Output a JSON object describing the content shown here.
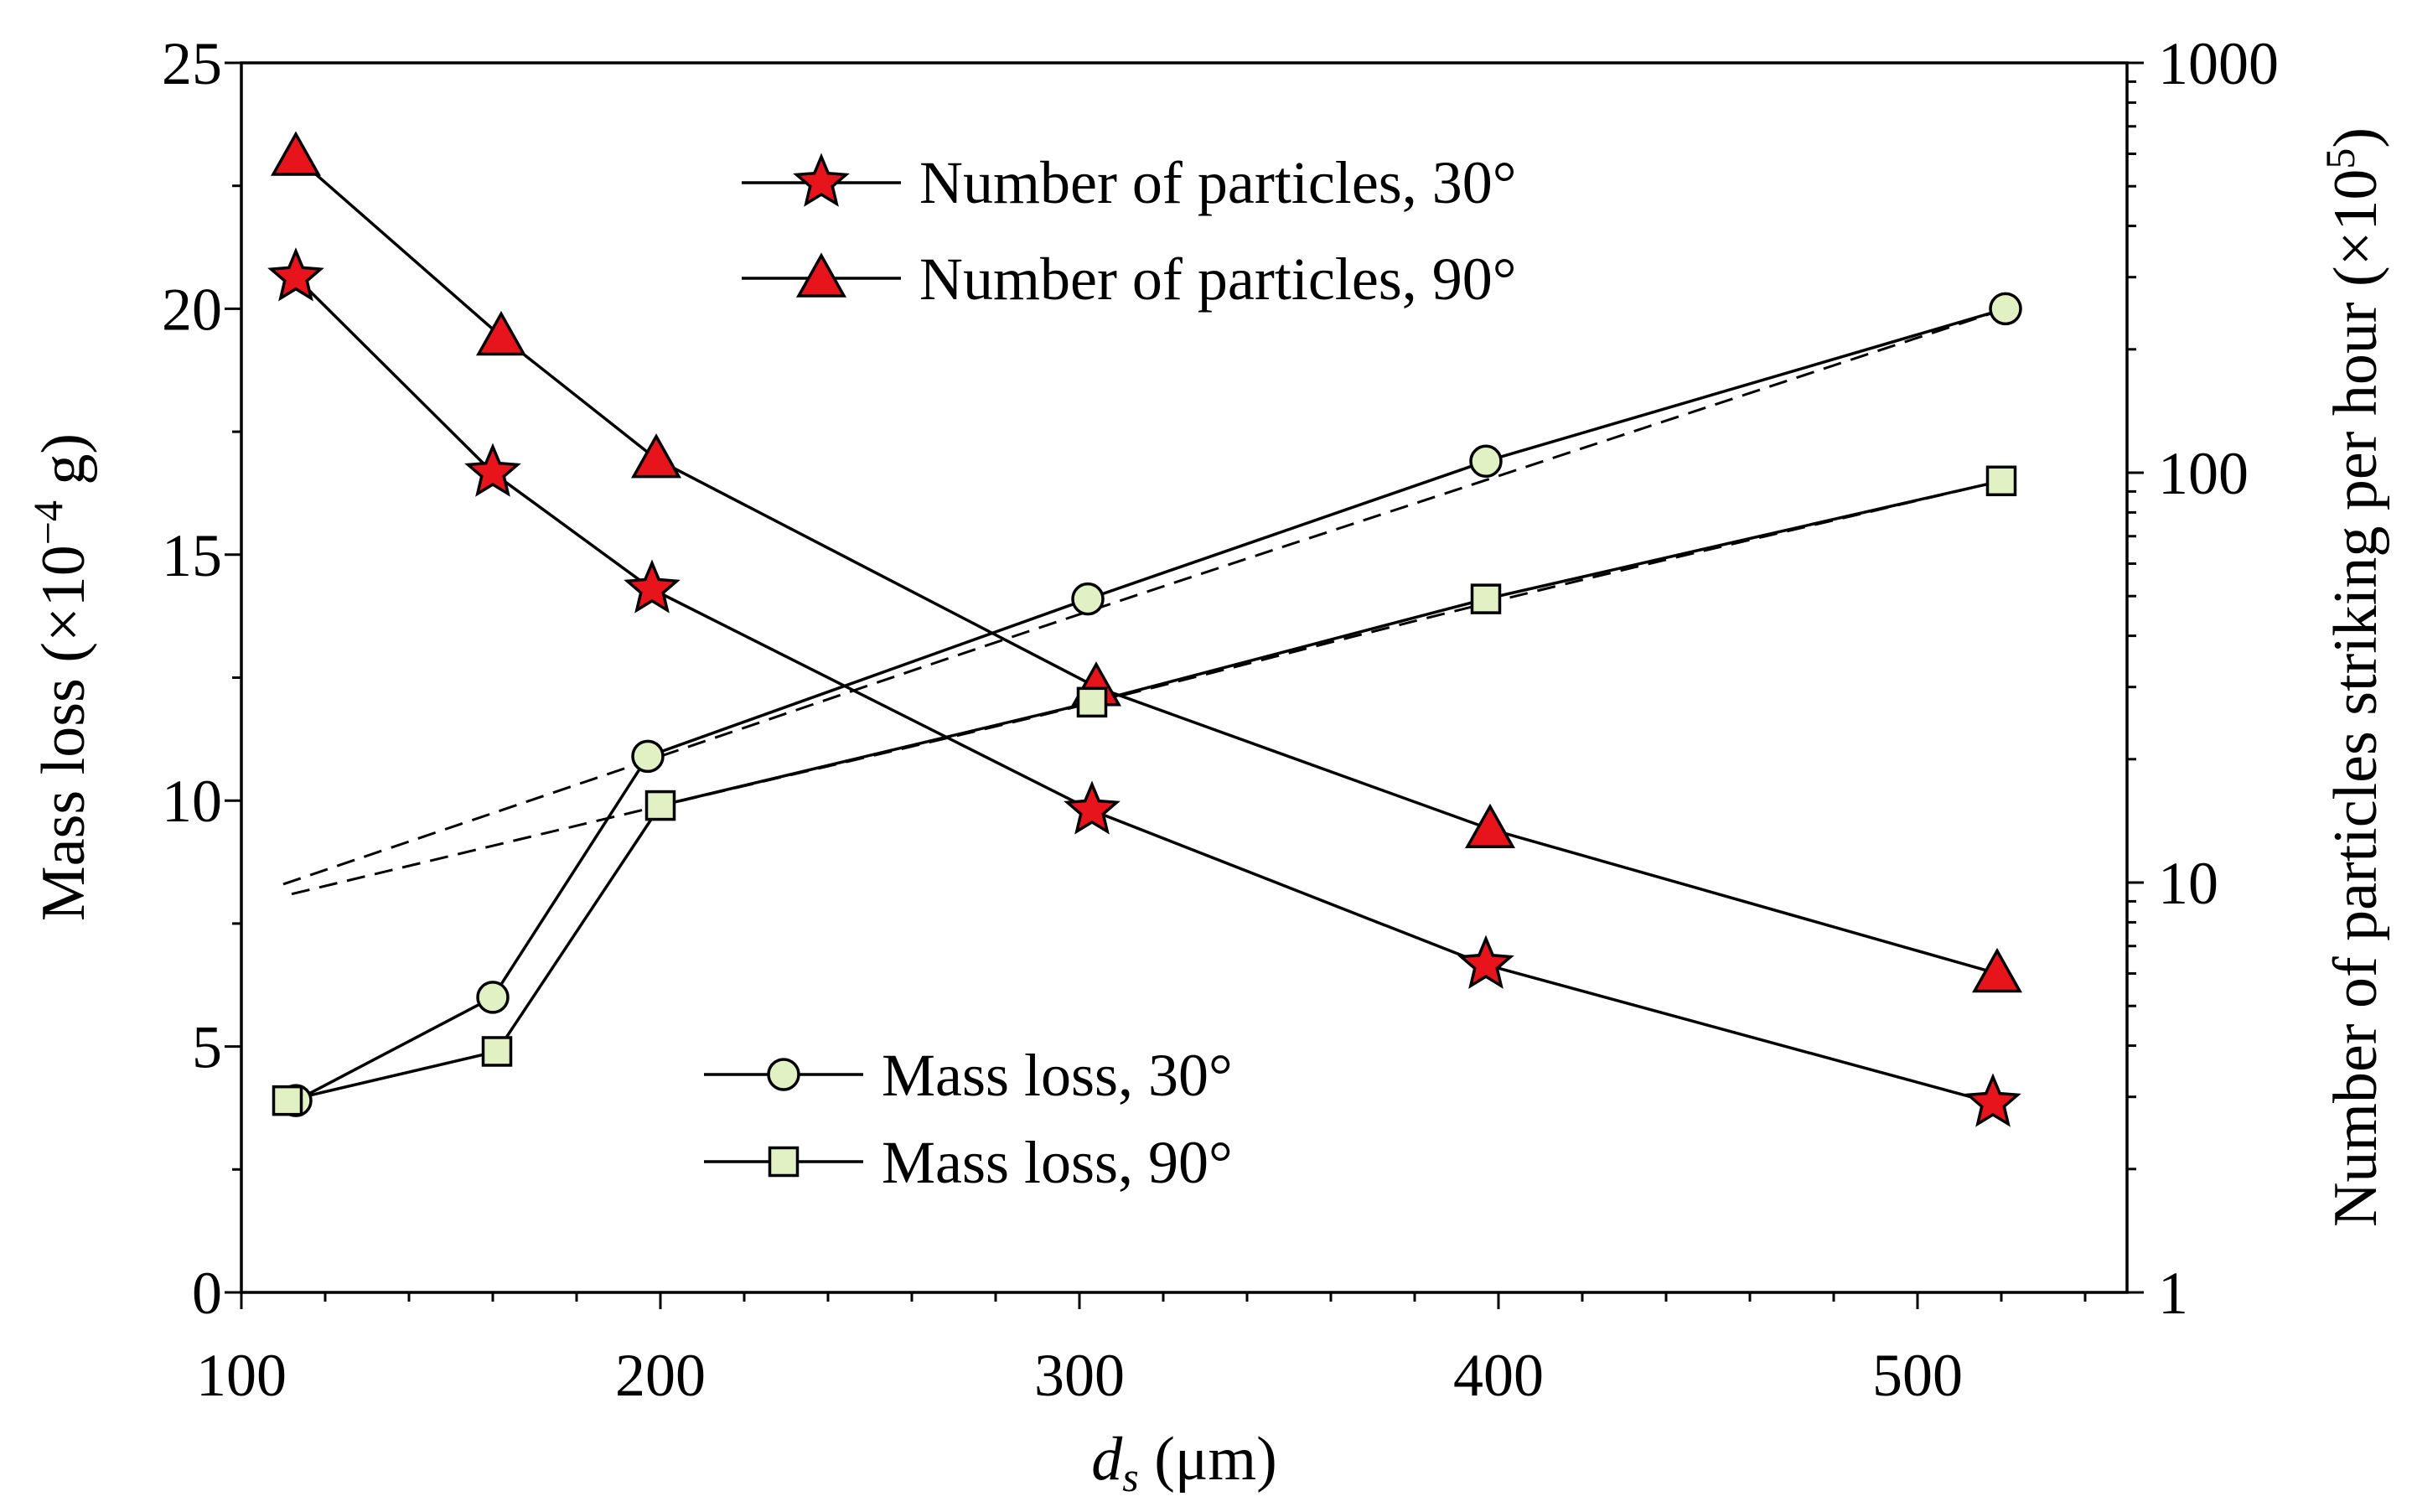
{
  "chart_data": {
    "type": "line",
    "x_axis": {
      "label_var": "d",
      "label_sub": "s",
      "label_unit": " (μm)",
      "range": [
        100,
        550
      ],
      "major_ticks": [
        100,
        200,
        300,
        400,
        500
      ],
      "tick_labels": [
        "100",
        "200",
        "300",
        "400",
        "500"
      ]
    },
    "y_left": {
      "label_main": "Mass loss (×10",
      "label_exp": "−4",
      "label_tail": " g)",
      "range": [
        0,
        25
      ],
      "major_ticks": [
        0,
        5,
        10,
        15,
        20,
        25
      ],
      "tick_labels": [
        "0",
        "5",
        "10",
        "15",
        "20",
        "25"
      ]
    },
    "y_right": {
      "label_main": "Number of particles striking per hour (×10",
      "label_exp": "5",
      "label_tail": ")",
      "scale": "log",
      "range": [
        1,
        1000
      ],
      "major_ticks": [
        1,
        10,
        100,
        1000
      ],
      "tick_labels": [
        "1",
        "10",
        "100",
        "1000"
      ]
    },
    "series": [
      {
        "name": "Number of particles, 30°",
        "axis": "right",
        "marker": "star",
        "color": "#e8141c",
        "x": [
          113,
          160,
          198,
          303,
          397,
          518
        ],
        "values": [
          300,
          100,
          52,
          15,
          6.3,
          2.9
        ]
      },
      {
        "name": "Number of particles, 90°",
        "axis": "right",
        "marker": "triangle",
        "color": "#e8141c",
        "x": [
          113,
          162,
          199,
          304,
          398,
          519
        ],
        "values": [
          590,
          215,
          108,
          30,
          13.5,
          6.0
        ]
      },
      {
        "name": "Mass loss, 30°",
        "axis": "left",
        "marker": "circle",
        "color": "#e2f1c4",
        "x": [
          113,
          160,
          197,
          302,
          397,
          521
        ],
        "values": [
          3.9,
          6.0,
          10.9,
          14.1,
          16.9,
          20.0
        ]
      },
      {
        "name": "Mass loss, 90°",
        "axis": "left",
        "marker": "square",
        "color": "#e2f1c4",
        "x": [
          111,
          161,
          200,
          303,
          397,
          520
        ],
        "values": [
          3.9,
          4.9,
          9.9,
          12.0,
          14.1,
          16.5
        ]
      }
    ],
    "fit_curves": [
      {
        "of": "Mass loss, 30°",
        "style": "dashed",
        "x": [
          110,
          200,
          300,
          400,
          521
        ],
        "values": [
          8.3,
          10.9,
          13.8,
          16.6,
          20.0
        ]
      },
      {
        "of": "Mass loss, 90°",
        "style": "dashed",
        "x": [
          112,
          200,
          300,
          400,
          520
        ],
        "values": [
          8.1,
          9.9,
          11.9,
          14.1,
          16.5
        ]
      }
    ],
    "legend": [
      {
        "position": "top-center",
        "entries": [
          0,
          1
        ]
      },
      {
        "position": "bottom-center",
        "entries": [
          2,
          3
        ]
      }
    ]
  }
}
